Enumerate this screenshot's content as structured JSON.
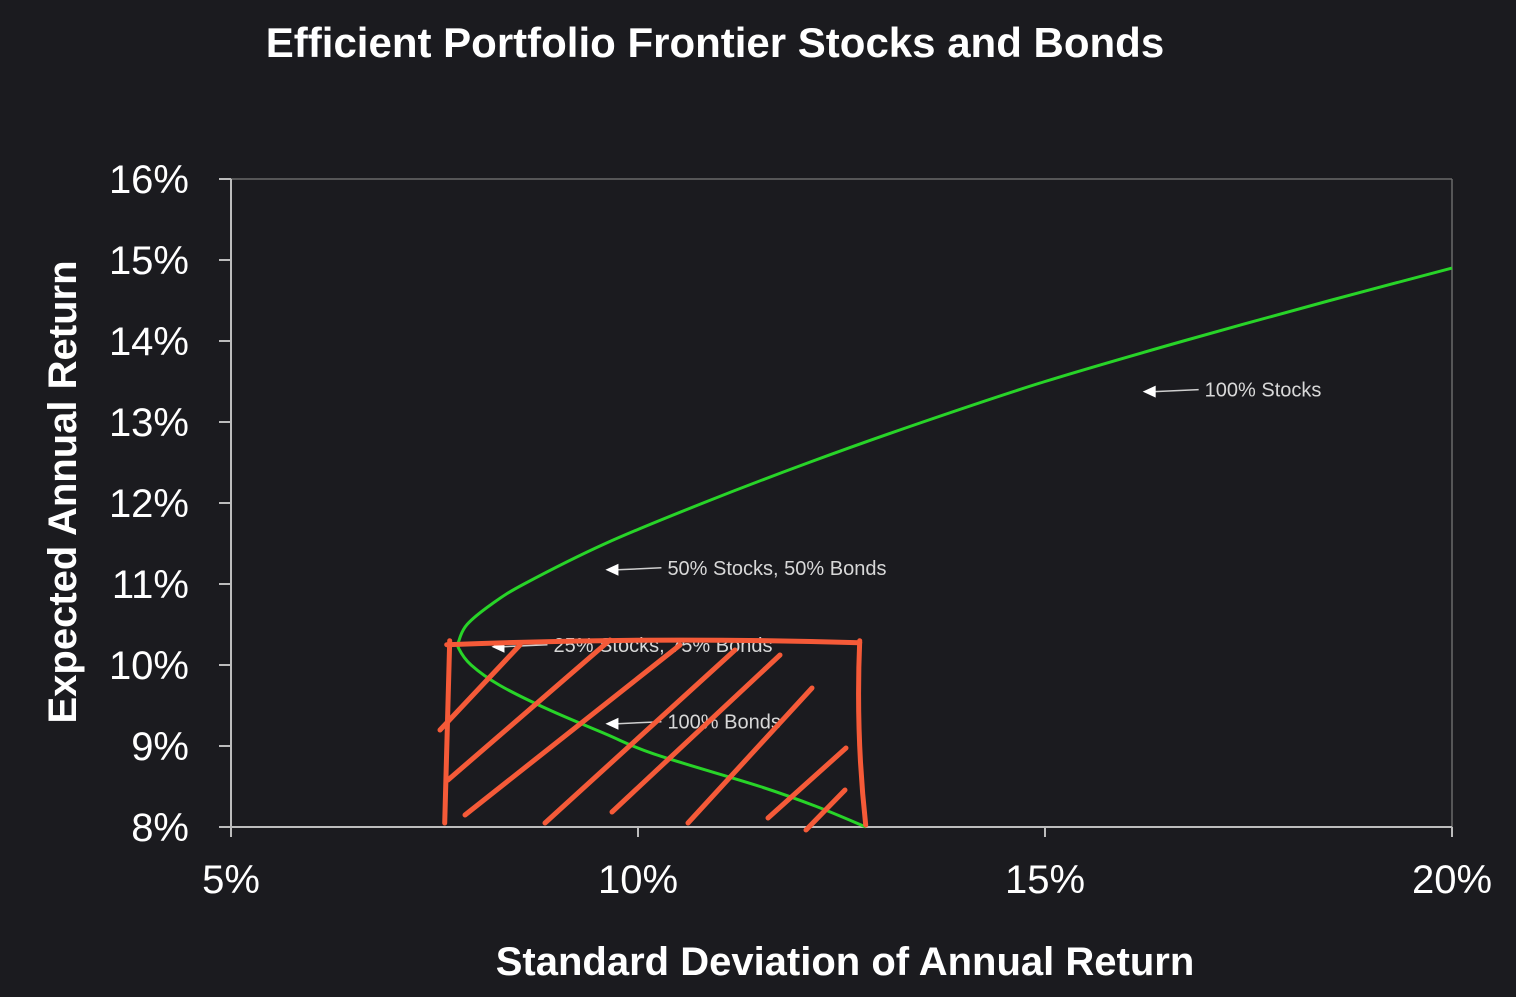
{
  "chart_data": {
    "type": "line",
    "title": "Efficient Portfolio Frontier Stocks and Bonds",
    "xlabel": "Standard Deviation of Annual Return",
    "ylabel": "Expected Annual Return",
    "xlim": [
      5,
      20
    ],
    "ylim": [
      8,
      16
    ],
    "x_ticks": [
      "5%",
      "10%",
      "15%",
      "20%"
    ],
    "y_ticks": [
      "16%",
      "15%",
      "14%",
      "13%",
      "12%",
      "11%",
      "10%",
      "9%",
      "8%"
    ],
    "grid": false,
    "series": [
      {
        "color": "#28d428",
        "points": [
          [
            12.8,
            8.0
          ],
          [
            12.2,
            8.25
          ],
          [
            11.5,
            8.5
          ],
          [
            10.2,
            8.9
          ],
          [
            9.6,
            9.15
          ],
          [
            8.9,
            9.45
          ],
          [
            8.3,
            9.75
          ],
          [
            7.95,
            10.0
          ],
          [
            7.8,
            10.2
          ],
          [
            7.8,
            10.3
          ],
          [
            7.9,
            10.5
          ],
          [
            8.2,
            10.75
          ],
          [
            8.6,
            11.0
          ],
          [
            9.6,
            11.5
          ],
          [
            10.8,
            12.0
          ],
          [
            12.1,
            12.5
          ],
          [
            13.5,
            13.0
          ],
          [
            15.0,
            13.5
          ],
          [
            16.7,
            14.0
          ],
          [
            18.5,
            14.5
          ],
          [
            20.0,
            14.9
          ]
        ]
      }
    ],
    "annotations": [
      {
        "text": "100% Stocks",
        "x": 16.2,
        "y": 13.4
      },
      {
        "text": "50% Stocks, 50% Bonds",
        "x": 9.6,
        "y": 11.2
      },
      {
        "text": "25% Stocks, 75% Bonds",
        "x": 8.2,
        "y": 10.25
      },
      {
        "text": "100% Bonds",
        "x": 9.6,
        "y": 9.3
      }
    ],
    "highlight": {
      "type": "hatched-rectangle",
      "color": "#f55a38",
      "x_range": [
        7.65,
        12.65
      ],
      "y_range": [
        8.0,
        10.3
      ]
    }
  }
}
